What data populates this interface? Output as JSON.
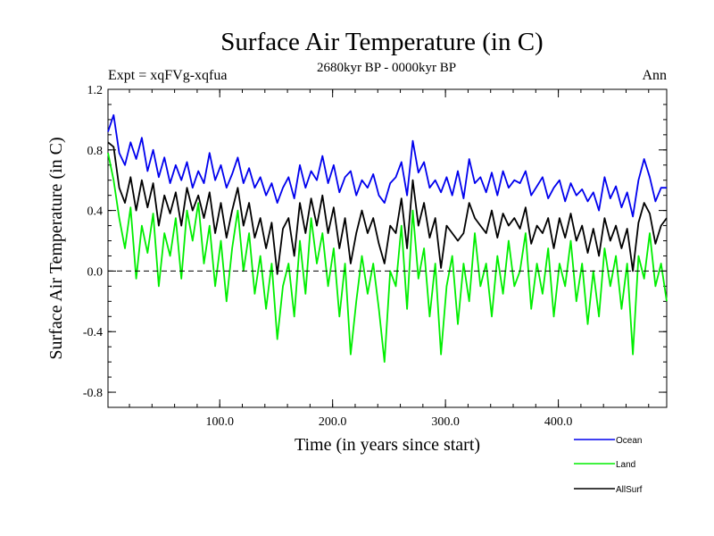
{
  "chart_data": {
    "type": "line",
    "title": "Surface Air Temperature (in C)",
    "subtitle": "2680kyr BP - 0000kyr BP",
    "left_label": "Expt = xqFVg-xqfua",
    "right_label": "Ann",
    "xlabel": "Time (in years since start)",
    "ylabel": "Surface Air Temperature (in C)",
    "xlim": [
      1,
      496
    ],
    "ylim": [
      -0.9,
      1.2
    ],
    "x_ticks": [
      100,
      200,
      300,
      400
    ],
    "x_tick_labels": [
      "100.0",
      "200.0",
      "300.0",
      "400.0"
    ],
    "y_ticks": [
      1.2,
      0.8,
      0.4,
      0.0,
      -0.4,
      -0.8
    ],
    "y_tick_labels": [
      "1.2",
      "0.8",
      "0.4",
      "0.0",
      "-0.4",
      "-0.8"
    ],
    "reference_line": 0.0,
    "legend_position": "bottom-right, below plot",
    "series_note": "values sampled every 5 years (approximate readings of annual series)",
    "x": [
      1,
      6,
      11,
      16,
      21,
      26,
      31,
      36,
      41,
      46,
      51,
      56,
      61,
      66,
      71,
      76,
      81,
      86,
      91,
      96,
      101,
      106,
      111,
      116,
      121,
      126,
      131,
      136,
      141,
      146,
      151,
      156,
      161,
      166,
      171,
      176,
      181,
      186,
      191,
      196,
      201,
      206,
      211,
      216,
      221,
      226,
      231,
      236,
      241,
      246,
      251,
      256,
      261,
      266,
      271,
      276,
      281,
      286,
      291,
      296,
      301,
      306,
      311,
      316,
      321,
      326,
      331,
      336,
      341,
      346,
      351,
      356,
      361,
      366,
      371,
      376,
      381,
      386,
      391,
      396,
      401,
      406,
      411,
      416,
      421,
      426,
      431,
      436,
      441,
      446,
      451,
      456,
      461,
      466,
      471,
      476,
      481,
      486,
      491,
      496
    ],
    "series": [
      {
        "name": "Ocean",
        "color": "#0000ee",
        "values": [
          0.92,
          1.03,
          0.78,
          0.7,
          0.85,
          0.74,
          0.88,
          0.66,
          0.8,
          0.62,
          0.75,
          0.58,
          0.7,
          0.6,
          0.72,
          0.55,
          0.66,
          0.58,
          0.78,
          0.6,
          0.7,
          0.55,
          0.64,
          0.75,
          0.58,
          0.68,
          0.55,
          0.62,
          0.5,
          0.58,
          0.45,
          0.55,
          0.62,
          0.48,
          0.7,
          0.55,
          0.66,
          0.6,
          0.76,
          0.58,
          0.7,
          0.52,
          0.62,
          0.66,
          0.5,
          0.6,
          0.55,
          0.64,
          0.5,
          0.45,
          0.58,
          0.62,
          0.72,
          0.5,
          0.86,
          0.65,
          0.72,
          0.55,
          0.6,
          0.52,
          0.62,
          0.5,
          0.66,
          0.48,
          0.74,
          0.58,
          0.62,
          0.52,
          0.65,
          0.5,
          0.66,
          0.55,
          0.6,
          0.58,
          0.66,
          0.5,
          0.56,
          0.62,
          0.48,
          0.55,
          0.6,
          0.46,
          0.58,
          0.5,
          0.54,
          0.46,
          0.52,
          0.4,
          0.62,
          0.48,
          0.56,
          0.42,
          0.52,
          0.36,
          0.6,
          0.74,
          0.62,
          0.46,
          0.55,
          0.55
        ]
      },
      {
        "name": "Land",
        "color": "#00ee00",
        "values": [
          0.78,
          0.6,
          0.35,
          0.15,
          0.42,
          -0.05,
          0.3,
          0.12,
          0.38,
          -0.1,
          0.25,
          0.1,
          0.35,
          -0.05,
          0.4,
          0.2,
          0.45,
          0.05,
          0.3,
          -0.1,
          0.2,
          -0.2,
          0.15,
          0.4,
          0.0,
          0.25,
          -0.15,
          0.1,
          -0.25,
          0.05,
          -0.45,
          -0.1,
          0.05,
          -0.3,
          0.2,
          -0.15,
          0.35,
          0.05,
          0.25,
          -0.1,
          0.15,
          -0.3,
          0.05,
          -0.55,
          -0.2,
          0.1,
          -0.15,
          0.05,
          -0.25,
          -0.6,
          0.0,
          -0.1,
          0.3,
          -0.25,
          0.4,
          -0.05,
          0.15,
          -0.3,
          0.05,
          -0.55,
          -0.1,
          0.1,
          -0.35,
          0.05,
          -0.2,
          0.25,
          -0.1,
          0.05,
          -0.3,
          0.1,
          -0.15,
          0.2,
          -0.1,
          0.0,
          0.25,
          -0.25,
          0.05,
          -0.15,
          0.15,
          -0.3,
          0.05,
          -0.1,
          0.2,
          -0.2,
          0.05,
          -0.35,
          0.0,
          -0.3,
          0.15,
          -0.1,
          0.1,
          -0.25,
          0.05,
          -0.55,
          0.1,
          -0.05,
          0.25,
          -0.1,
          0.05,
          -0.2
        ]
      },
      {
        "name": "AllSurf",
        "color": "#000000",
        "values": [
          0.85,
          0.82,
          0.55,
          0.45,
          0.62,
          0.4,
          0.6,
          0.42,
          0.58,
          0.3,
          0.5,
          0.38,
          0.52,
          0.3,
          0.55,
          0.4,
          0.5,
          0.35,
          0.52,
          0.25,
          0.45,
          0.22,
          0.4,
          0.55,
          0.3,
          0.45,
          0.22,
          0.35,
          0.15,
          0.32,
          -0.02,
          0.28,
          0.35,
          0.1,
          0.45,
          0.25,
          0.48,
          0.3,
          0.5,
          0.25,
          0.42,
          0.15,
          0.35,
          0.05,
          0.25,
          0.4,
          0.25,
          0.35,
          0.18,
          0.05,
          0.3,
          0.25,
          0.48,
          0.15,
          0.6,
          0.3,
          0.45,
          0.22,
          0.35,
          0.02,
          0.3,
          0.25,
          0.2,
          0.25,
          0.45,
          0.35,
          0.3,
          0.25,
          0.4,
          0.22,
          0.38,
          0.3,
          0.35,
          0.28,
          0.42,
          0.18,
          0.3,
          0.25,
          0.35,
          0.15,
          0.35,
          0.22,
          0.38,
          0.2,
          0.3,
          0.12,
          0.28,
          0.1,
          0.35,
          0.2,
          0.3,
          0.15,
          0.28,
          0.0,
          0.32,
          0.45,
          0.38,
          0.18,
          0.3,
          0.35
        ]
      }
    ]
  }
}
